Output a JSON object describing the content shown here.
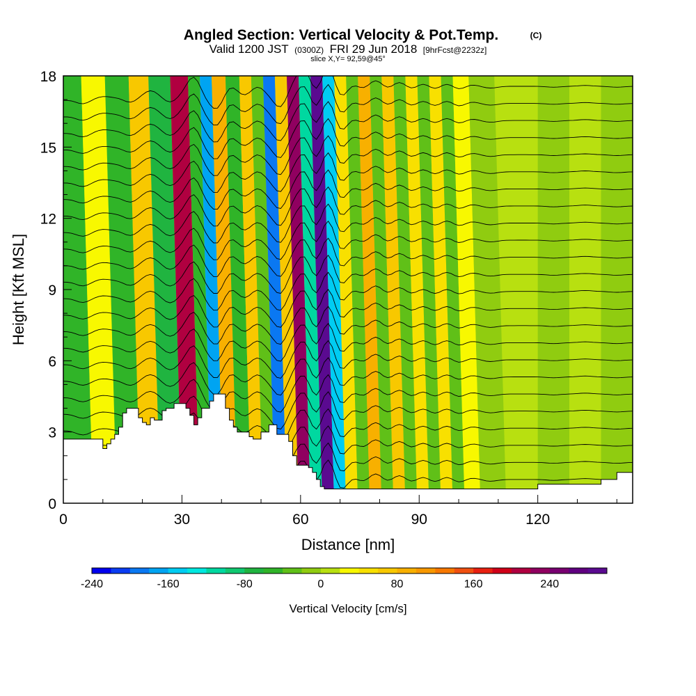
{
  "chart_data": {
    "type": "heatmap",
    "title": {
      "main": "Angled Section: Vertical Velocity & Pot.Temp.",
      "corner_mark": "(C)",
      "valid_prefix": "Valid 1200 JST",
      "valid_utc": "(0300Z)",
      "valid_date": "FRI 29 Jun 2018",
      "forecast": "[9hrFcst@2232z]",
      "slice": "slice X,Y= 92,59@45°"
    },
    "xlabel": "Distance [nm]",
    "ylabel": "Height [Kft MSL]",
    "xlim": [
      0,
      144
    ],
    "ylim": [
      0,
      18
    ],
    "xticks": [
      {
        "value": 0,
        "label": "0"
      },
      {
        "value": 30,
        "label": "30"
      },
      {
        "value": 60,
        "label": "60"
      },
      {
        "value": 90,
        "label": "90"
      },
      {
        "value": 120,
        "label": "120"
      }
    ],
    "yticks": [
      {
        "value": 0,
        "label": "0"
      },
      {
        "value": 3,
        "label": "3"
      },
      {
        "value": 6,
        "label": "6"
      },
      {
        "value": 9,
        "label": "9"
      },
      {
        "value": 12,
        "label": "12"
      },
      {
        "value": 15,
        "label": "15"
      },
      {
        "value": 18,
        "label": "18"
      }
    ],
    "colorbar": {
      "title": "Vertical Velocity [cm/s]",
      "min": -240,
      "max": 300,
      "step": 20,
      "ticks": [
        {
          "value": -240,
          "label": "-240"
        },
        {
          "value": -160,
          "label": "-160"
        },
        {
          "value": -80,
          "label": "-80"
        },
        {
          "value": 0,
          "label": "0"
        },
        {
          "value": 80,
          "label": "80"
        },
        {
          "value": 160,
          "label": "160"
        },
        {
          "value": 240,
          "label": "240"
        }
      ],
      "colors": [
        "#0000ee",
        "#0a3cf2",
        "#0a78f2",
        "#00a4f2",
        "#00ccf2",
        "#00e8e0",
        "#00d8a0",
        "#10c870",
        "#20b440",
        "#30b428",
        "#60c018",
        "#90cc10",
        "#b8e010",
        "#f8f800",
        "#f8e000",
        "#f8c800",
        "#f8b000",
        "#f89800",
        "#f87800",
        "#f05010",
        "#e82010",
        "#d00018",
        "#b00040",
        "#900060",
        "#780070",
        "#600080",
        "#5a0a90"
      ]
    },
    "velocity_bands": [
      {
        "x": 5,
        "value": -50
      },
      {
        "x": 10,
        "value": 20
      },
      {
        "x": 17,
        "value": -60
      },
      {
        "x": 22,
        "value": 60
      },
      {
        "x": 27,
        "value": -80
      },
      {
        "x": 33,
        "value": 200
      },
      {
        "x": 36,
        "value": -60
      },
      {
        "x": 39,
        "value": -180
      },
      {
        "x": 42,
        "value": 80
      },
      {
        "x": 46,
        "value": -60
      },
      {
        "x": 49,
        "value": 60
      },
      {
        "x": 52,
        "value": -40
      },
      {
        "x": 55,
        "value": -200
      },
      {
        "x": 58,
        "value": 60
      },
      {
        "x": 61,
        "value": 220
      },
      {
        "x": 64,
        "value": -120
      },
      {
        "x": 67,
        "value": 280
      },
      {
        "x": 70,
        "value": -160
      },
      {
        "x": 73,
        "value": 40
      },
      {
        "x": 76,
        "value": -40
      },
      {
        "x": 79,
        "value": 80
      },
      {
        "x": 82,
        "value": -40
      },
      {
        "x": 85,
        "value": 60
      },
      {
        "x": 88,
        "value": -40
      },
      {
        "x": 91,
        "value": 40
      },
      {
        "x": 94,
        "value": -40
      },
      {
        "x": 97,
        "value": 40
      },
      {
        "x": 100,
        "value": -40
      },
      {
        "x": 103,
        "value": 20
      },
      {
        "x": 108,
        "value": -20
      },
      {
        "x": 116,
        "value": 0
      },
      {
        "x": 124,
        "value": -10
      },
      {
        "x": 132,
        "value": 10
      },
      {
        "x": 140,
        "value": -10
      }
    ],
    "terrain": {
      "x": [
        0,
        9,
        10,
        11,
        12,
        13,
        14,
        15,
        16,
        17,
        18,
        19,
        20,
        21,
        22,
        23,
        24,
        25,
        26,
        27,
        28,
        29,
        30,
        31,
        32,
        33,
        34,
        35,
        36,
        37,
        38,
        39,
        40,
        41,
        42,
        43,
        44,
        45,
        46,
        47,
        48,
        49,
        50,
        51,
        52,
        53,
        54,
        55,
        56,
        57,
        58,
        59,
        60,
        61,
        62,
        63,
        64,
        65,
        66,
        67,
        68,
        69,
        70,
        71,
        72,
        73,
        74,
        75,
        76,
        77,
        78,
        79,
        80,
        85,
        90,
        95,
        100,
        105,
        110,
        113,
        116,
        120,
        124,
        128,
        132,
        136,
        138,
        140,
        144
      ],
      "y": [
        2.7,
        2.7,
        2.3,
        2.5,
        2.7,
        2.9,
        3.2,
        3.8,
        4.0,
        4.0,
        4.0,
        3.6,
        3.4,
        3.3,
        3.6,
        3.5,
        3.5,
        3.9,
        4.0,
        4.0,
        4.2,
        4.2,
        4.2,
        4.0,
        3.7,
        3.3,
        3.6,
        4.0,
        4.0,
        4.3,
        4.6,
        4.6,
        4.6,
        4.0,
        3.5,
        3.2,
        3.0,
        3.0,
        3.0,
        2.8,
        2.7,
        2.7,
        3.0,
        3.0,
        3.3,
        3.3,
        2.9,
        2.9,
        2.9,
        2.6,
        2.0,
        1.6,
        1.6,
        1.6,
        1.5,
        1.3,
        1.0,
        0.7,
        0.6,
        0.6,
        0.6,
        0.6,
        0.6,
        0.6,
        0.6,
        0.6,
        0.6,
        0.6,
        0.6,
        0.6,
        0.6,
        0.6,
        0.6,
        0.6,
        0.6,
        0.6,
        0.6,
        0.6,
        0.6,
        0.6,
        0.6,
        0.8,
        0.8,
        0.8,
        0.8,
        1.0,
        1.0,
        1.3,
        1.4
      ]
    },
    "theta_contours": {
      "count": 24,
      "base_height": 1.0,
      "spacing": 0.72
    }
  }
}
